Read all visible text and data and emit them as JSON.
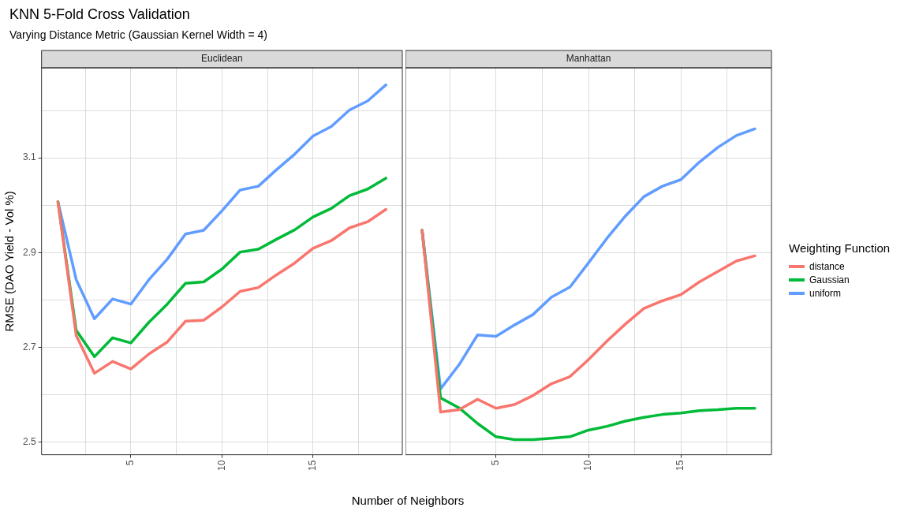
{
  "chart_data": [
    {
      "type": "line",
      "title": "Euclidean",
      "annotations": [
        "KNN 5-Fold Cross Validation",
        "Varying Distance Metric (Gaussian Kernel Width = 4)"
      ],
      "xlabel": "Number of Neighbors",
      "ylabel": "RMSE (DAO Yield - Vol %)",
      "x": [
        1,
        2,
        3,
        4,
        5,
        6,
        7,
        8,
        9,
        10,
        11,
        12,
        13,
        14,
        15,
        16,
        17,
        18,
        19
      ],
      "xlim": [
        0.1,
        19.9
      ],
      "xticks": [
        {
          "value": 2.5,
          "label": null
        },
        5,
        {
          "value": 7.5,
          "label": null
        },
        10,
        {
          "value": 12.5,
          "label": null
        },
        15,
        {
          "value": 17.5,
          "label": null
        }
      ],
      "ylim": [
        2.473,
        3.29
      ],
      "yticks": [
        2.5,
        {
          "value": 2.6,
          "label": null
        },
        2.7,
        {
          "value": 2.8,
          "label": null
        },
        2.9,
        {
          "value": 3.0,
          "label": null
        },
        3.1,
        {
          "value": 3.2,
          "label": null
        }
      ],
      "grid": true,
      "legend": false,
      "marker": "none",
      "line_style": "solid",
      "series": [
        {
          "color": "#f8766d",
          "values": [
            3.007,
            2.725,
            2.645,
            2.67,
            2.654,
            2.686,
            2.711,
            2.755,
            2.757,
            2.785,
            2.818,
            2.826,
            2.853,
            2.878,
            2.909,
            2.925,
            2.952,
            2.965,
            2.991
          ]
        },
        {
          "color": "#00ba38",
          "values": [
            3.007,
            2.736,
            2.68,
            2.72,
            2.709,
            2.753,
            2.791,
            2.835,
            2.838,
            2.865,
            2.901,
            2.907,
            2.928,
            2.948,
            2.975,
            2.993,
            3.02,
            3.034,
            3.057
          ]
        },
        {
          "color": "#619cff",
          "values": [
            3.007,
            2.843,
            2.76,
            2.802,
            2.791,
            2.843,
            2.886,
            2.939,
            2.947,
            2.988,
            3.032,
            3.04,
            3.075,
            3.108,
            3.146,
            3.166,
            3.201,
            3.22,
            3.254
          ]
        }
      ]
    },
    {
      "type": "line",
      "title": "Manhattan",
      "x": [
        1,
        2,
        3,
        4,
        5,
        6,
        7,
        8,
        9,
        10,
        11,
        12,
        13,
        14,
        15,
        16,
        17,
        18,
        19
      ],
      "xlim": [
        0.1,
        19.9
      ],
      "xticks": [
        {
          "value": 2.5,
          "label": null
        },
        5,
        {
          "value": 7.5,
          "label": null
        },
        10,
        {
          "value": 12.5,
          "label": null
        },
        15,
        {
          "value": 17.5,
          "label": null
        }
      ],
      "ylim": [
        2.473,
        3.29
      ],
      "yticks": [
        2.5,
        {
          "value": 2.6,
          "label": null
        },
        2.7,
        {
          "value": 2.8,
          "label": null
        },
        2.9,
        {
          "value": 3.0,
          "label": null
        },
        3.1,
        {
          "value": 3.2,
          "label": null
        }
      ],
      "tick_labels": "x",
      "grid": true,
      "legend": "right",
      "legend_title": "Weighting Function",
      "marker": "none",
      "line_style": "solid",
      "series": [
        {
          "name": "distance",
          "color": "#f8766d",
          "values": [
            2.947,
            2.563,
            2.568,
            2.59,
            2.571,
            2.579,
            2.598,
            2.623,
            2.638,
            2.674,
            2.713,
            2.749,
            2.782,
            2.798,
            2.811,
            2.838,
            2.86,
            2.882,
            2.893
          ]
        },
        {
          "name": "Gaussian",
          "color": "#00ba38",
          "values": [
            2.947,
            2.593,
            2.572,
            2.539,
            2.511,
            2.505,
            2.505,
            2.508,
            2.511,
            2.525,
            2.533,
            2.544,
            2.552,
            2.558,
            2.561,
            2.566,
            2.568,
            2.571,
            2.571
          ]
        },
        {
          "name": "uniform",
          "color": "#619cff",
          "values": [
            2.947,
            2.612,
            2.663,
            2.726,
            2.723,
            2.747,
            2.769,
            2.806,
            2.827,
            2.878,
            2.93,
            2.977,
            3.018,
            3.04,
            3.054,
            3.091,
            3.122,
            3.147,
            3.161
          ]
        }
      ]
    }
  ]
}
